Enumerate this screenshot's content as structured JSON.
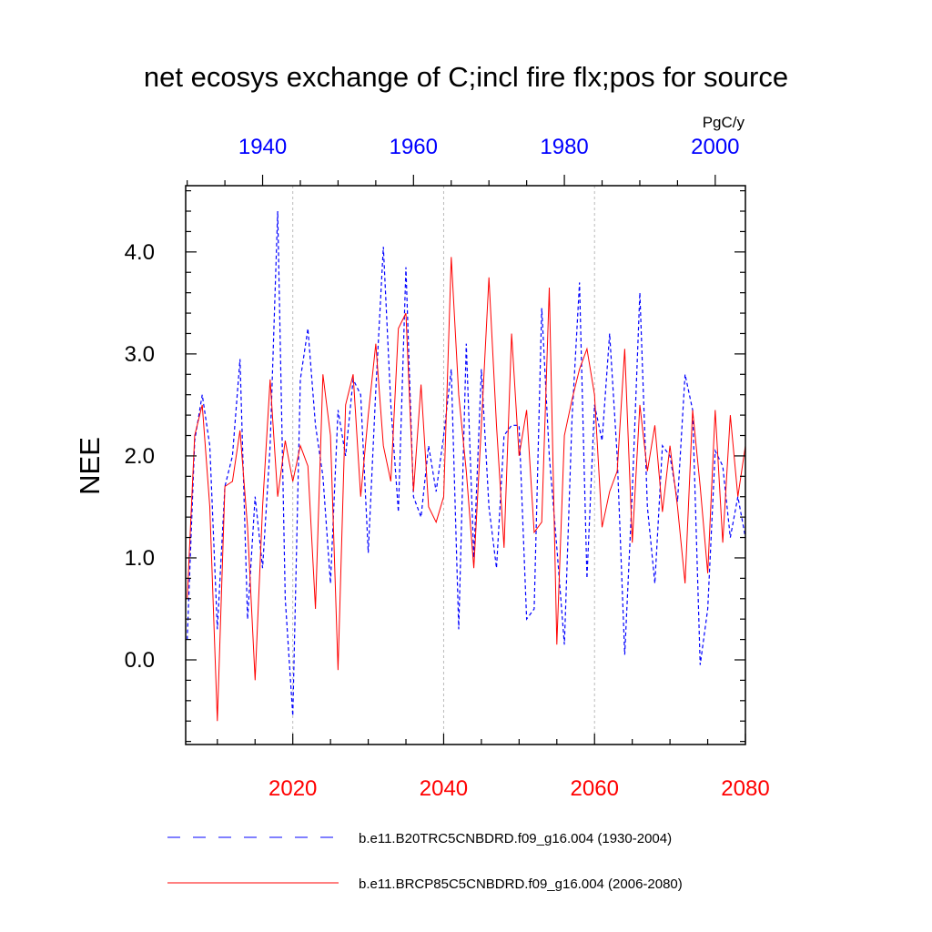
{
  "chart_data": {
    "type": "line",
    "title": "net ecosys exchange of C;incl fire flx;pos for source",
    "units": "PgC/y",
    "ylabel": "NEE",
    "ylim": [
      -0.83,
      4.65
    ],
    "yticks": [
      0.0,
      1.0,
      2.0,
      3.0,
      4.0
    ],
    "ytick_labels": [
      "0.0",
      "1.0",
      "2.0",
      "3.0",
      "4.0"
    ],
    "top_axis": {
      "color": "#0000ff",
      "range": [
        1929.8,
        2004.0
      ],
      "ticks": [
        1940,
        1960,
        1980,
        2000
      ],
      "tick_labels": [
        "1940",
        "1960",
        "1980",
        "2000"
      ]
    },
    "bottom_axis": {
      "color": "#ff0000",
      "range": [
        2005.8,
        2080.0
      ],
      "ticks": [
        2020,
        2040,
        2060,
        2080
      ],
      "tick_labels": [
        "2020",
        "2040",
        "2060",
        "2080"
      ]
    },
    "grid_lines_x": [
      2020,
      2040,
      2060
    ],
    "series": [
      {
        "name": "b.e11.B20TRC5CNBDRD.f09_g16.004 (1930-2004)",
        "axis": "top",
        "color": "#0000ff",
        "dash": "dashed",
        "x_start": 1930,
        "values": [
          0.2,
          2.15,
          2.6,
          2.1,
          0.3,
          1.7,
          2.0,
          2.95,
          0.4,
          1.6,
          0.9,
          2.1,
          4.4,
          0.6,
          -0.55,
          2.75,
          3.25,
          2.3,
          1.8,
          0.75,
          2.45,
          2.0,
          2.75,
          2.6,
          1.05,
          2.65,
          4.05,
          2.5,
          1.45,
          3.85,
          1.6,
          1.4,
          2.1,
          1.65,
          2.2,
          2.85,
          0.3,
          3.1,
          1.0,
          2.85,
          1.5,
          0.9,
          2.2,
          2.3,
          2.3,
          0.4,
          0.5,
          3.45,
          2.0,
          1.1,
          0.15,
          2.35,
          3.7,
          0.8,
          2.5,
          2.15,
          3.2,
          2.0,
          0.05,
          1.65,
          3.6,
          1.5,
          0.75,
          2.1,
          2.0,
          1.55,
          2.8,
          2.45,
          -0.05,
          0.5,
          2.05,
          1.9,
          1.2,
          1.6,
          1.2
        ]
      },
      {
        "name": "b.e11.BRCP85C5CNBDRD.f09_g16.004 (2006-2080)",
        "axis": "bottom",
        "color": "#ff0000",
        "dash": "solid",
        "x_start": 2006,
        "values": [
          0.6,
          2.2,
          2.5,
          1.5,
          -0.6,
          1.7,
          1.75,
          2.25,
          1.3,
          -0.2,
          1.5,
          2.75,
          1.6,
          2.15,
          1.75,
          2.1,
          1.9,
          0.5,
          2.8,
          2.2,
          -0.1,
          2.5,
          2.8,
          1.6,
          2.4,
          3.1,
          2.1,
          1.75,
          3.25,
          3.4,
          1.65,
          2.7,
          1.5,
          1.35,
          1.6,
          3.95,
          2.6,
          1.85,
          0.9,
          2.3,
          3.75,
          2.3,
          1.1,
          3.2,
          2.0,
          2.45,
          1.25,
          1.35,
          3.65,
          0.15,
          2.2,
          2.55,
          2.85,
          3.05,
          2.6,
          1.3,
          1.65,
          1.85,
          3.05,
          1.15,
          2.5,
          1.85,
          2.3,
          1.45,
          2.1,
          1.5,
          0.75,
          2.45,
          1.7,
          0.85,
          2.45,
          1.15,
          2.4,
          1.6,
          2.1
        ]
      }
    ]
  }
}
